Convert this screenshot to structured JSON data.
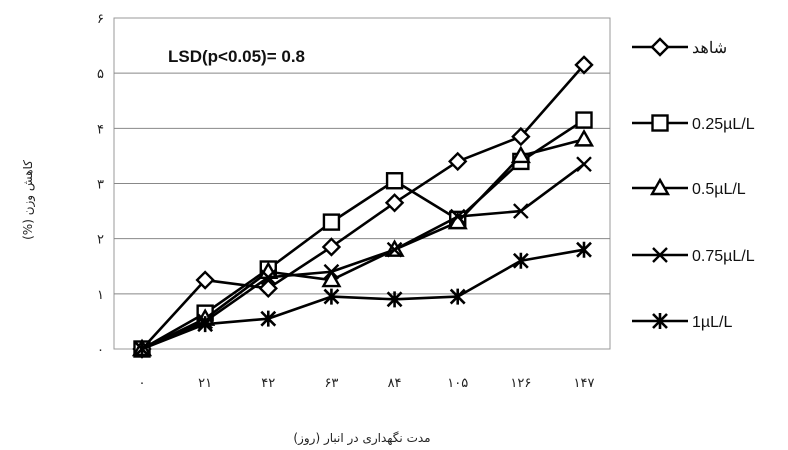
{
  "chart_data": {
    "type": "line",
    "title": "",
    "annotation": "LSD(p<0.05)= 0.8",
    "xlabel": "مدت نگهداری در انبار (روز)",
    "ylabel": "کاهش وزن (%)",
    "x": [
      0,
      21,
      42,
      63,
      84,
      105,
      126,
      147
    ],
    "x_tick_labels": [
      "۰",
      "۲۱",
      "۴۲",
      "۶۳",
      "۸۴",
      "۱۰۵",
      "۱۲۶",
      "۱۴۷"
    ],
    "ylim": [
      0,
      6
    ],
    "y_ticks": [
      0,
      1,
      2,
      3,
      4,
      5,
      6
    ],
    "y_tick_labels": [
      "۰",
      "۱",
      "۲",
      "۳",
      "۴",
      "۵",
      "۶"
    ],
    "grid": "horizontal",
    "legend_position": "right",
    "series": [
      {
        "name": "شاهد",
        "marker": "diamond",
        "values": [
          0,
          1.25,
          1.1,
          1.85,
          2.65,
          3.4,
          3.85,
          5.15
        ]
      },
      {
        "name": "0.25µL/L",
        "marker": "square",
        "values": [
          0,
          0.65,
          1.45,
          2.3,
          3.05,
          2.35,
          3.4,
          4.15
        ]
      },
      {
        "name": "0.5µL/L",
        "marker": "triangle",
        "values": [
          0,
          0.55,
          1.4,
          1.25,
          1.8,
          2.3,
          3.5,
          3.8
        ]
      },
      {
        "name": "0.75µL/L",
        "marker": "x",
        "values": [
          0,
          0.5,
          1.3,
          1.4,
          1.8,
          2.4,
          2.5,
          3.35
        ]
      },
      {
        "name": "1µL/L",
        "marker": "star",
        "values": [
          0,
          0.45,
          0.55,
          0.95,
          0.9,
          0.95,
          1.6,
          1.8
        ]
      }
    ]
  }
}
